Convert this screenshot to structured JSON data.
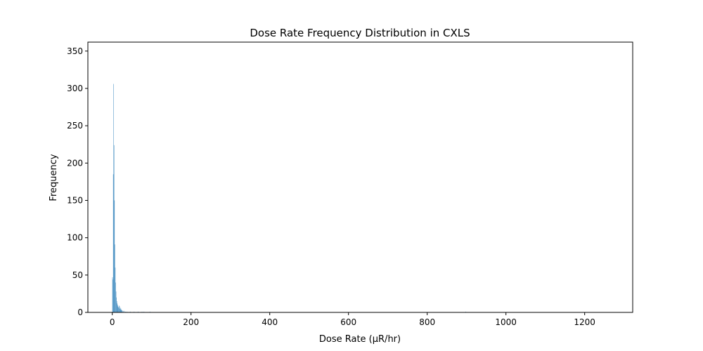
{
  "chart_data": {
    "type": "bar",
    "title": "Dose Rate Frequency Distribution in CXLS",
    "xlabel": "Dose Rate (μR/hr)",
    "ylabel": "Frequency",
    "xlim": [
      -62,
      1322
    ],
    "ylim": [
      0,
      362
    ],
    "xticks": [
      0,
      200,
      400,
      600,
      800,
      1000,
      1200
    ],
    "yticks": [
      0,
      50,
      100,
      150,
      200,
      250,
      300,
      350
    ],
    "grid": false,
    "bar_color": "#1f77b4",
    "bin_width": 1,
    "bins": [
      {
        "x": 0,
        "y": 47
      },
      {
        "x": 1,
        "y": 44
      },
      {
        "x": 2,
        "y": 185
      },
      {
        "x": 3,
        "y": 306
      },
      {
        "x": 4,
        "y": 224
      },
      {
        "x": 5,
        "y": 150
      },
      {
        "x": 6,
        "y": 91
      },
      {
        "x": 7,
        "y": 60
      },
      {
        "x": 8,
        "y": 40
      },
      {
        "x": 9,
        "y": 28
      },
      {
        "x": 10,
        "y": 20
      },
      {
        "x": 11,
        "y": 15
      },
      {
        "x": 12,
        "y": 12
      },
      {
        "x": 13,
        "y": 10
      },
      {
        "x": 14,
        "y": 8
      },
      {
        "x": 15,
        "y": 7
      },
      {
        "x": 16,
        "y": 6
      },
      {
        "x": 17,
        "y": 9
      },
      {
        "x": 18,
        "y": 8
      },
      {
        "x": 19,
        "y": 5
      },
      {
        "x": 20,
        "y": 4
      },
      {
        "x": 21,
        "y": 6
      },
      {
        "x": 22,
        "y": 4
      },
      {
        "x": 23,
        "y": 3
      },
      {
        "x": 24,
        "y": 3
      },
      {
        "x": 25,
        "y": 2
      },
      {
        "x": 27,
        "y": 2
      },
      {
        "x": 30,
        "y": 2
      },
      {
        "x": 33,
        "y": 1
      },
      {
        "x": 37,
        "y": 1
      },
      {
        "x": 45,
        "y": 1
      },
      {
        "x": 55,
        "y": 1
      },
      {
        "x": 65,
        "y": 1
      },
      {
        "x": 75,
        "y": 1
      },
      {
        "x": 80,
        "y": 1
      },
      {
        "x": 95,
        "y": 1
      },
      {
        "x": 897,
        "y": 1
      }
    ]
  }
}
